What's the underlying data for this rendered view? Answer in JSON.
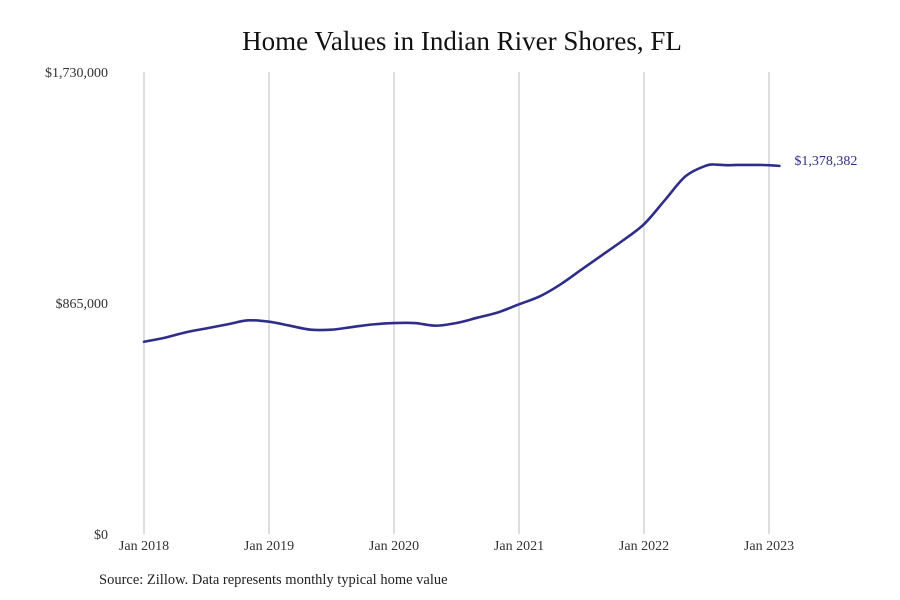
{
  "chart_data": {
    "type": "line",
    "title": "Home Values in Indian River Shores, FL",
    "xlabel": "",
    "ylabel": "",
    "ylim": [
      0,
      1730000
    ],
    "y_ticks": [
      {
        "value": 0,
        "label": "$0"
      },
      {
        "value": 865000,
        "label": "$865,000"
      },
      {
        "value": 1730000,
        "label": "$1,730,000"
      }
    ],
    "x_ticks": [
      {
        "value": 2018.0,
        "label": "Jan 2018"
      },
      {
        "value": 2019.0,
        "label": "Jan 2019"
      },
      {
        "value": 2020.0,
        "label": "Jan 2020"
      },
      {
        "value": 2021.0,
        "label": "Jan 2021"
      },
      {
        "value": 2022.0,
        "label": "Jan 2022"
      },
      {
        "value": 2023.0,
        "label": "Jan 2023"
      }
    ],
    "xlim": [
      2018.0,
      2024.0
    ],
    "grid": "vertical",
    "series": [
      {
        "color": "#2e2e8a",
        "end_label": "$1,378,382",
        "x": [
          "2018-01",
          "2018-03",
          "2018-05",
          "2018-07",
          "2018-09",
          "2018-11",
          "2019-01",
          "2019-03",
          "2019-05",
          "2019-07",
          "2019-09",
          "2019-11",
          "2020-01",
          "2020-03",
          "2020-05",
          "2020-07",
          "2020-09",
          "2020-11",
          "2021-01",
          "2021-03",
          "2021-05",
          "2021-07",
          "2021-09",
          "2021-11",
          "2022-01",
          "2022-03",
          "2022-05",
          "2022-07",
          "2022-08",
          "2022-09",
          "2022-10",
          "2022-11",
          "2022-12",
          "2023-01",
          "2023-02"
        ],
        "y": [
          720000,
          735000,
          755000,
          770000,
          785000,
          800000,
          795000,
          780000,
          765000,
          765000,
          775000,
          785000,
          790000,
          790000,
          780000,
          790000,
          810000,
          830000,
          860000,
          890000,
          935000,
          990000,
          1045000,
          1100000,
          1160000,
          1250000,
          1340000,
          1380000,
          1383000,
          1381000,
          1382000,
          1382000,
          1382000,
          1381000,
          1378382
        ]
      }
    ]
  },
  "source_text": "Source: Zillow. Data represents monthly typical home value"
}
